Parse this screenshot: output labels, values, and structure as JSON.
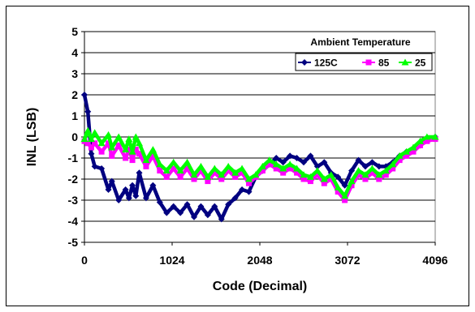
{
  "chart_data": {
    "type": "line",
    "xlabel": "Code (Decimal)",
    "ylabel": "INL (LSB)",
    "xlim": [
      0,
      4096
    ],
    "ylim": [
      -5,
      5
    ],
    "x_ticks": [
      0,
      1024,
      2048,
      3072,
      4096
    ],
    "y_ticks": [
      5,
      4,
      3,
      2,
      1,
      0,
      -1,
      -2,
      -3,
      -4,
      -5
    ],
    "grid": "horizontal",
    "legend": {
      "title": "Ambient Temperature",
      "position": "top-right"
    },
    "x": [
      0,
      40,
      80,
      120,
      200,
      280,
      320,
      400,
      480,
      520,
      560,
      600,
      640,
      720,
      800,
      880,
      960,
      1040,
      1120,
      1200,
      1280,
      1360,
      1440,
      1520,
      1600,
      1680,
      1760,
      1840,
      1920,
      2000,
      2080,
      2160,
      2240,
      2320,
      2400,
      2480,
      2560,
      2640,
      2720,
      2800,
      2880,
      2960,
      3040,
      3120,
      3200,
      3280,
      3360,
      3440,
      3520,
      3600,
      3680,
      3760,
      3840,
      3920,
      4000,
      4096
    ],
    "series": [
      {
        "name": "125C",
        "color": "#000080",
        "marker": "diamond",
        "values": [
          2.0,
          1.2,
          -0.8,
          -1.4,
          -1.5,
          -2.5,
          -2.1,
          -3.0,
          -2.5,
          -2.9,
          -2.3,
          -2.8,
          -1.7,
          -2.9,
          -2.3,
          -3.1,
          -3.6,
          -3.3,
          -3.6,
          -3.2,
          -3.8,
          -3.3,
          -3.7,
          -3.3,
          -3.9,
          -3.2,
          -2.9,
          -2.5,
          -2.6,
          -1.9,
          -1.6,
          -1.3,
          -1.0,
          -1.2,
          -0.9,
          -1.0,
          -1.2,
          -0.9,
          -1.4,
          -1.2,
          -1.7,
          -1.9,
          -2.3,
          -1.6,
          -1.1,
          -1.4,
          -1.2,
          -1.4,
          -1.4,
          -1.2,
          -0.9,
          -0.7,
          -0.6,
          -0.4,
          -0.1,
          0.0
        ]
      },
      {
        "name": "85",
        "color": "#ff00ff",
        "marker": "square",
        "values": [
          -0.2,
          -0.3,
          -0.5,
          -0.3,
          -0.7,
          -0.3,
          -0.9,
          -0.4,
          -1.0,
          -0.6,
          -1.1,
          -0.6,
          -0.8,
          -1.4,
          -0.9,
          -1.6,
          -1.9,
          -1.5,
          -1.9,
          -1.5,
          -2.0,
          -1.6,
          -2.1,
          -1.7,
          -2.0,
          -1.6,
          -1.9,
          -1.7,
          -2.2,
          -1.9,
          -1.6,
          -1.3,
          -1.5,
          -1.7,
          -1.5,
          -1.7,
          -2.0,
          -2.1,
          -1.8,
          -2.2,
          -2.0,
          -2.6,
          -3.0,
          -2.3,
          -1.8,
          -2.0,
          -1.7,
          -2.0,
          -1.8,
          -1.5,
          -1.1,
          -0.9,
          -0.7,
          -0.4,
          -0.2,
          -0.1
        ]
      },
      {
        "name": "25",
        "color": "#00ff00",
        "marker": "triangle",
        "values": [
          -0.1,
          0.3,
          -0.1,
          0.2,
          -0.3,
          0.1,
          -0.5,
          0.0,
          -0.6,
          -0.1,
          -0.7,
          0.0,
          -0.3,
          -1.1,
          -0.6,
          -1.3,
          -1.6,
          -1.2,
          -1.6,
          -1.2,
          -1.8,
          -1.4,
          -1.9,
          -1.5,
          -1.8,
          -1.4,
          -1.7,
          -1.5,
          -2.0,
          -1.8,
          -1.4,
          -1.1,
          -1.3,
          -1.5,
          -1.3,
          -1.5,
          -1.8,
          -1.9,
          -1.6,
          -2.0,
          -1.8,
          -2.4,
          -2.8,
          -2.1,
          -1.6,
          -1.8,
          -1.5,
          -1.8,
          -1.6,
          -1.3,
          -0.9,
          -0.7,
          -0.5,
          -0.2,
          0.0,
          0.0
        ]
      }
    ]
  }
}
